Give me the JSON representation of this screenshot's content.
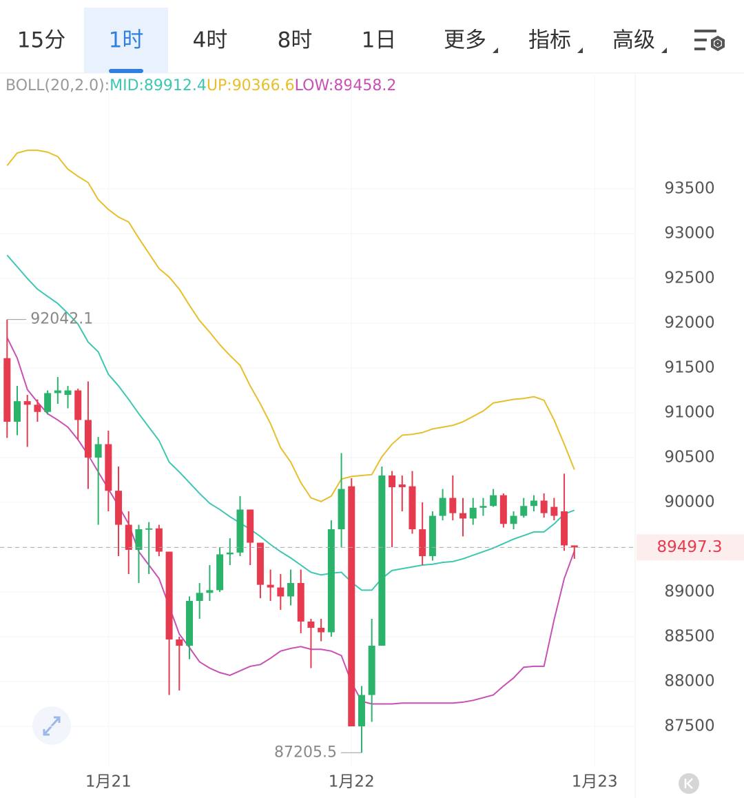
{
  "tabs": [
    "15分",
    "1时",
    "4时",
    "8时",
    "1日",
    "更多",
    "指标",
    "高级"
  ],
  "active_tab": 1,
  "chart_data": {
    "type": "candlestick",
    "indicator_label": "BOLL(20,2.0):",
    "x": [
      0,
      1,
      2,
      3,
      4,
      5,
      6,
      7,
      8,
      9,
      10,
      11,
      12,
      13,
      14,
      15,
      16,
      17,
      18,
      19,
      20,
      21,
      22,
      23,
      24,
      25,
      26,
      27,
      28,
      29,
      30,
      31,
      32,
      33,
      34,
      35,
      36,
      37,
      38,
      39,
      40,
      41,
      42,
      43,
      44,
      45,
      46,
      47,
      48,
      49,
      50,
      51,
      52,
      53,
      54,
      55,
      56
    ],
    "open": [
      91610,
      90900,
      91130,
      91090,
      91010,
      91220,
      91200,
      91250,
      90920,
      90500,
      90650,
      90130,
      89750,
      89470,
      89700,
      89710,
      89450,
      88470,
      88400,
      88900,
      88990,
      89020,
      89420,
      89440,
      89920,
      89550,
      89080,
      89050,
      88950,
      89100,
      88670,
      88600,
      88550,
      89700,
      90180,
      87500,
      87850,
      88400,
      90300,
      90200,
      90180,
      89700,
      89400,
      89850,
      90050,
      89880,
      89820,
      89940,
      89960,
      90080,
      89760,
      89850,
      89960,
      90020,
      89950,
      89900,
      89520
    ],
    "high": [
      92042.1,
      91300,
      91200,
      91150,
      91250,
      91400,
      91300,
      91270,
      91350,
      90730,
      90800,
      90400,
      89900,
      89750,
      89780,
      89750,
      89450,
      88500,
      88950,
      89100,
      89300,
      89500,
      89600,
      90070,
      89920,
      89550,
      89250,
      89200,
      89250,
      89250,
      88700,
      88700,
      89800,
      90550,
      90270,
      87950,
      88700,
      90400,
      90350,
      90300,
      90350,
      90000,
      89900,
      90150,
      90300,
      90050,
      90050,
      90050,
      90150,
      90100,
      89900,
      90050,
      90080,
      90100,
      90050,
      90320,
      89520
    ],
    "low": [
      90720,
      90750,
      90620,
      90900,
      90980,
      91100,
      91050,
      90700,
      90150,
      89750,
      89900,
      89400,
      89200,
      89100,
      89200,
      89400,
      87850,
      87900,
      88250,
      88700,
      88900,
      89000,
      89300,
      89400,
      89300,
      88930,
      88900,
      88800,
      88850,
      88540,
      88150,
      88450,
      88500,
      89500,
      87500,
      87205.5,
      87550,
      88400,
      89500,
      89900,
      89650,
      89300,
      89350,
      89800,
      89800,
      89620,
      89750,
      89850,
      89950,
      89720,
      89700,
      89830,
      89900,
      89830,
      89800,
      89460,
      89370
    ],
    "close": [
      90900,
      91130,
      91090,
      91010,
      91220,
      91250,
      91250,
      90920,
      90500,
      90650,
      90130,
      89750,
      89470,
      89700,
      89710,
      89450,
      88470,
      88400,
      88900,
      88990,
      89020,
      89420,
      89440,
      89920,
      89550,
      89080,
      89050,
      88950,
      89100,
      88670,
      88600,
      88550,
      89700,
      90150,
      87500,
      87850,
      88400,
      90300,
      90170,
      90170,
      89700,
      89400,
      89850,
      90050,
      89880,
      89820,
      89940,
      89960,
      90080,
      89760,
      89850,
      89960,
      90020,
      89880,
      89850,
      89520,
      89497.3
    ],
    "up_color": "#2bb36c",
    "down_color": "#e63a4e",
    "series": [
      {
        "name": "MID:89912.4",
        "color": "#3cc7b0",
        "values": [
          92760,
          92630,
          92500,
          92380,
          92300,
          92220,
          92110,
          91990,
          91790,
          91680,
          91430,
          91300,
          91150,
          90990,
          90840,
          90690,
          90450,
          90340,
          90220,
          90100,
          89990,
          89920,
          89840,
          89770,
          89700,
          89620,
          89530,
          89450,
          89380,
          89300,
          89220,
          89190,
          89210,
          89220,
          89110,
          89020,
          89020,
          89150,
          89240,
          89260,
          89280,
          89300,
          89310,
          89330,
          89340,
          89370,
          89410,
          89450,
          89490,
          89540,
          89590,
          89630,
          89670,
          89670,
          89760,
          89870,
          89912.4
        ]
      },
      {
        "name": "UP:90366.6",
        "color": "#e6bf2a",
        "values": [
          93760,
          93900,
          93930,
          93930,
          93910,
          93860,
          93720,
          93640,
          93570,
          93380,
          93270,
          93185,
          93130,
          92950,
          92780,
          92610,
          92515,
          92380,
          92200,
          92030,
          91900,
          91760,
          91640,
          91530,
          91300,
          91100,
          90880,
          90610,
          90450,
          90220,
          90050,
          90010,
          90070,
          90260,
          90290,
          90300,
          90310,
          90510,
          90650,
          90750,
          90760,
          90780,
          90820,
          90840,
          90860,
          90900,
          90960,
          91020,
          91110,
          91130,
          91150,
          91160,
          91180,
          91140,
          90920,
          90650,
          90366.6
        ]
      },
      {
        "name": "LOW:89458.2",
        "color": "#c84fb6",
        "values": [
          91840,
          91610,
          91260,
          91120,
          90990,
          90920,
          90840,
          90700,
          90530,
          90340,
          90150,
          89960,
          89760,
          89450,
          89300,
          89150,
          88840,
          88530,
          88380,
          88220,
          88150,
          88100,
          88070,
          88120,
          88170,
          88190,
          88260,
          88340,
          88370,
          88390,
          88360,
          88360,
          88340,
          88290,
          87990,
          87780,
          87750,
          87750,
          87750,
          87760,
          87760,
          87760,
          87760,
          87760,
          87760,
          87770,
          87790,
          87820,
          87850,
          87950,
          88040,
          88160,
          88170,
          88170,
          88690,
          89150,
          89458.2
        ]
      }
    ],
    "xlim": [
      -0.7,
      62
    ],
    "ylim": [
      87054,
      94762
    ],
    "yticks": [
      87500,
      88000,
      88500,
      89000,
      89500,
      90000,
      90500,
      91000,
      91500,
      92000,
      92500,
      93000,
      93500
    ],
    "xticks": [
      {
        "value": 10,
        "label": "1月21"
      },
      {
        "value": 34,
        "label": "1月22"
      },
      {
        "value": 58,
        "label": "1月23"
      }
    ],
    "grid": true
  }
}
